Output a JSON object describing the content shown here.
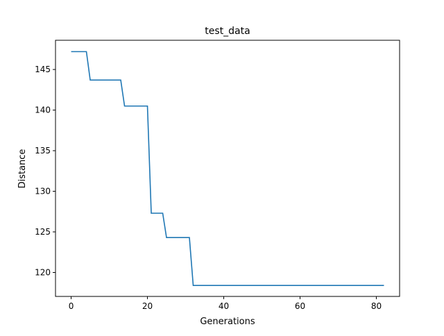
{
  "chart_data": {
    "type": "line",
    "title": "test_data",
    "xlabel": "Generations",
    "ylabel": "Distance",
    "xlim": [
      -4.1,
      86.1
    ],
    "ylim": [
      117.05,
      148.6
    ],
    "xticks": [
      0,
      20,
      40,
      60,
      80
    ],
    "yticks": [
      120,
      125,
      130,
      135,
      140,
      145
    ],
    "xtick_labels": [
      "0",
      "20",
      "40",
      "60",
      "80"
    ],
    "ytick_labels": [
      "120",
      "125",
      "130",
      "135",
      "140",
      "145"
    ],
    "grid": false,
    "legend": "none",
    "series": [
      {
        "color": "#1f77b4",
        "x": [
          0,
          4,
          5,
          13,
          14,
          20,
          21,
          24,
          25,
          31,
          32,
          82
        ],
        "y": [
          147.2,
          147.2,
          143.7,
          143.7,
          140.5,
          140.5,
          127.3,
          127.3,
          124.3,
          124.3,
          118.4,
          118.4
        ]
      }
    ]
  }
}
